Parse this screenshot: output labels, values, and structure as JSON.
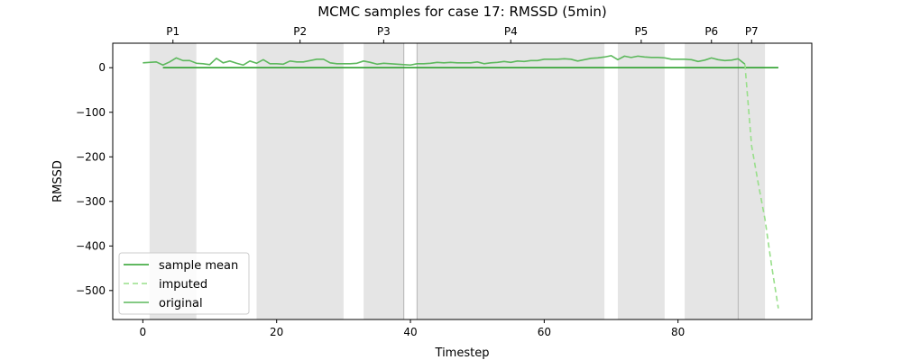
{
  "chart_data": {
    "type": "line",
    "title": "MCMC samples for case 17: RMSSD (5min)",
    "xlabel": "Timestep",
    "ylabel": "RMSSD",
    "xlim": [
      -4.5,
      100
    ],
    "ylim": [
      -565,
      55
    ],
    "xticks": [
      0,
      20,
      40,
      60,
      80
    ],
    "yticks": [
      0,
      -100,
      -200,
      -300,
      -400,
      -500
    ],
    "grid": false,
    "legend_position": "lower-left",
    "colors": {
      "sample_mean": "#2ca02c",
      "imputed": "#98df8a",
      "original": "#5cb85c",
      "shade": "#e5e5e5",
      "shade_edge": "#bdbdbd"
    },
    "phases": [
      {
        "label": "P1",
        "start": 1,
        "end": 8
      },
      {
        "label": "P2",
        "start": 17,
        "end": 30
      },
      {
        "label": "P3",
        "start": 33,
        "end": 39
      },
      {
        "label": "P4",
        "start": 41,
        "end": 69
      },
      {
        "label": "P5",
        "start": 71,
        "end": 78
      },
      {
        "label": "P6",
        "start": 81,
        "end": 89
      },
      {
        "label": "P7",
        "start": 89,
        "end": 93
      }
    ],
    "vlines": [
      39,
      41,
      89
    ],
    "series": [
      {
        "name": "sample mean",
        "style": "solid",
        "x": [
          3,
          95
        ],
        "y": [
          0,
          0
        ]
      },
      {
        "name": "imputed",
        "style": "dashed",
        "x": [
          90,
          91,
          92,
          93,
          94,
          95
        ],
        "y": [
          8,
          -175,
          -260,
          -340,
          -445,
          -540
        ]
      },
      {
        "name": "original",
        "style": "solid",
        "x": [
          0,
          1,
          2,
          3,
          4,
          5,
          6,
          7,
          8,
          9,
          10,
          11,
          12,
          13,
          14,
          15,
          16,
          17,
          18,
          19,
          20,
          21,
          22,
          23,
          24,
          25,
          26,
          27,
          28,
          29,
          30,
          31,
          32,
          33,
          34,
          35,
          36,
          37,
          38,
          39,
          40,
          41,
          42,
          43,
          44,
          45,
          46,
          47,
          48,
          49,
          50,
          51,
          52,
          53,
          54,
          55,
          56,
          57,
          58,
          59,
          60,
          61,
          62,
          63,
          64,
          65,
          66,
          67,
          68,
          69,
          70,
          71,
          72,
          73,
          74,
          75,
          76,
          77,
          78,
          79,
          80,
          81,
          82,
          83,
          84,
          85,
          86,
          87,
          88,
          89,
          90
        ],
        "y": [
          11,
          12,
          13,
          6,
          13,
          22,
          16,
          16,
          10,
          9,
          7,
          21,
          11,
          15,
          10,
          6,
          15,
          10,
          18,
          9,
          9,
          8,
          15,
          13,
          13,
          16,
          19,
          19,
          11,
          9,
          9,
          9,
          10,
          15,
          12,
          8,
          10,
          9,
          8,
          7,
          6,
          9,
          9,
          10,
          12,
          11,
          12,
          11,
          11,
          11,
          13,
          9,
          11,
          12,
          14,
          12,
          15,
          14,
          16,
          16,
          19,
          19,
          19,
          20,
          19,
          15,
          18,
          21,
          22,
          24,
          27,
          18,
          26,
          23,
          26,
          24,
          23,
          23,
          22,
          19,
          19,
          19,
          18,
          14,
          17,
          22,
          18,
          16,
          17,
          20,
          8
        ]
      }
    ]
  }
}
